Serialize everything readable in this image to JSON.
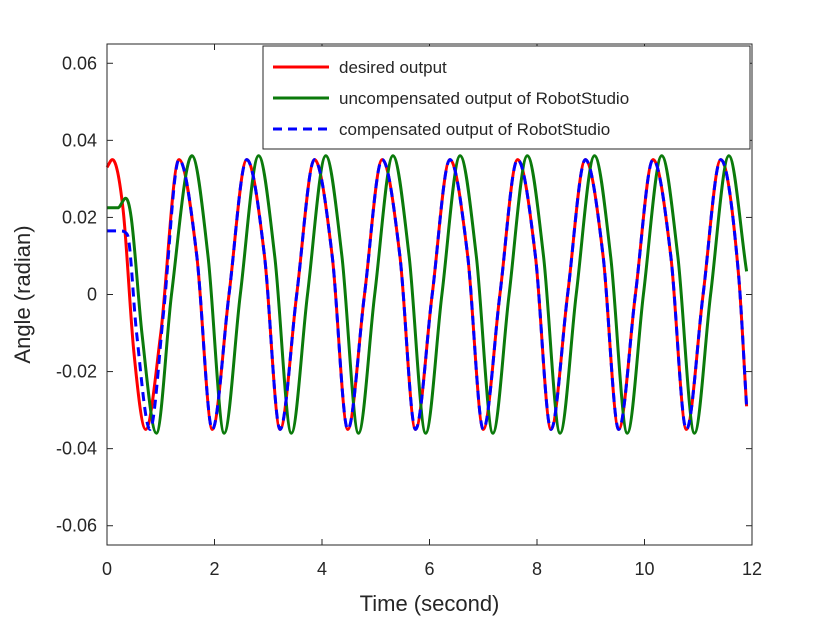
{
  "chart_data": {
    "type": "line",
    "title": "",
    "xlabel": "Time (second)",
    "ylabel": "Angle (radian)",
    "xlim": [
      0,
      12
    ],
    "ylim": [
      -0.065,
      0.065
    ],
    "xticks": [
      0,
      2,
      4,
      6,
      8,
      10,
      12
    ],
    "xtick_labels": [
      "0",
      "2",
      "4",
      "6",
      "8",
      "10",
      "12"
    ],
    "yticks": [
      -0.06,
      -0.04,
      -0.02,
      0,
      0.02,
      0.04,
      0.06
    ],
    "ytick_labels": [
      "-0.06",
      "-0.04",
      "-0.02",
      "0",
      "0.02",
      "0.04",
      "0.06"
    ],
    "grid": false,
    "legend_position": "top-right",
    "series": [
      {
        "name": "desired output",
        "color": "#ff0000",
        "style": "solid",
        "x": [
          0,
          0.1,
          0.3,
          0.5,
          0.72,
          1.0,
          1.34,
          1.67,
          1.96,
          2.27,
          2.6,
          2.93,
          3.22,
          3.53,
          3.86,
          4.19,
          4.48,
          4.79,
          5.12,
          5.45,
          5.74,
          6.05,
          6.38,
          6.71,
          7.0,
          7.31,
          7.64,
          7.97,
          8.26,
          8.57,
          8.9,
          9.23,
          9.52,
          9.83,
          10.16,
          10.49,
          10.78,
          11.09,
          11.42,
          11.75,
          11.9
        ],
        "y": [
          0.033,
          0.035,
          0.022,
          -0.015,
          -0.035,
          -0.01,
          0.035,
          0.01,
          -0.035,
          0.0,
          0.035,
          0.01,
          -0.035,
          0.0,
          0.035,
          0.01,
          -0.035,
          0.0,
          0.035,
          0.01,
          -0.035,
          0.0,
          0.035,
          0.01,
          -0.035,
          0.0,
          0.035,
          0.01,
          -0.035,
          0.0,
          0.035,
          0.01,
          -0.035,
          0.0,
          0.035,
          0.01,
          -0.035,
          0.0,
          0.035,
          0.005,
          -0.029
        ]
      },
      {
        "name": "uncompensated output of RobotStudio",
        "color": "#0b7a0b",
        "style": "solid",
        "x": [
          0,
          0.2,
          0.35,
          0.45,
          0.65,
          0.92,
          1.2,
          1.58,
          1.88,
          2.18,
          2.48,
          2.82,
          3.12,
          3.43,
          3.73,
          4.07,
          4.37,
          4.68,
          4.98,
          5.32,
          5.62,
          5.93,
          6.23,
          6.57,
          6.87,
          7.18,
          7.48,
          7.82,
          8.12,
          8.43,
          8.73,
          9.07,
          9.37,
          9.68,
          9.98,
          10.32,
          10.62,
          10.93,
          11.23,
          11.57,
          11.9
        ],
        "y": [
          0.0225,
          0.0225,
          0.025,
          0.02,
          -0.01,
          -0.036,
          0.0,
          0.036,
          0.01,
          -0.036,
          0.0,
          0.036,
          0.01,
          -0.036,
          0.0,
          0.036,
          0.01,
          -0.036,
          0.0,
          0.036,
          0.01,
          -0.036,
          0.0,
          0.036,
          0.01,
          -0.036,
          0.0,
          0.036,
          0.01,
          -0.036,
          0.0,
          0.036,
          0.01,
          -0.036,
          0.0,
          0.036,
          0.01,
          -0.036,
          0.0,
          0.036,
          0.006
        ]
      },
      {
        "name": "compensated output of RobotStudio",
        "color": "#0000ff",
        "style": "dashed",
        "x": [
          0,
          0.25,
          0.38,
          0.55,
          0.8,
          1.05,
          1.34,
          1.67,
          1.96,
          2.27,
          2.6,
          2.93,
          3.22,
          3.53,
          3.86,
          4.19,
          4.48,
          4.79,
          5.12,
          5.45,
          5.74,
          6.05,
          6.38,
          6.71,
          7.0,
          7.31,
          7.64,
          7.97,
          8.26,
          8.57,
          8.9,
          9.23,
          9.52,
          9.83,
          10.16,
          10.49,
          10.78,
          11.09,
          11.42,
          11.75,
          11.9
        ],
        "y": [
          0.0165,
          0.0165,
          0.0155,
          -0.01,
          -0.035,
          -0.005,
          0.035,
          0.01,
          -0.035,
          0.0,
          0.035,
          0.01,
          -0.035,
          0.0,
          0.035,
          0.01,
          -0.035,
          0.0,
          0.035,
          0.01,
          -0.035,
          0.0,
          0.035,
          0.01,
          -0.035,
          0.0,
          0.035,
          0.01,
          -0.035,
          0.0,
          0.035,
          0.01,
          -0.035,
          0.0,
          0.035,
          0.01,
          -0.035,
          0.0,
          0.035,
          0.005,
          -0.029
        ]
      }
    ]
  }
}
